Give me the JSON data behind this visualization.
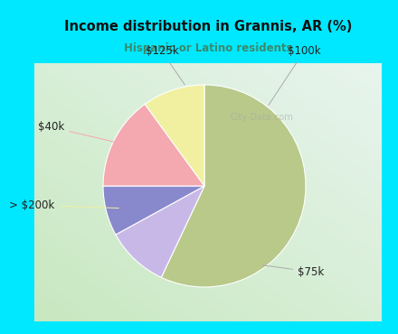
{
  "title": "Income distribution in Grannis, AR (%)",
  "subtitle": "Hispanic or Latino residents",
  "slices": [
    {
      "label": "$75k",
      "value": 57,
      "color": "#b8c98a"
    },
    {
      "label": "$100k",
      "value": 10,
      "color": "#c8b8e8"
    },
    {
      "label": "$125k",
      "value": 8,
      "color": "#8888cc"
    },
    {
      "label": "$40k",
      "value": 15,
      "color": "#f4a8b0"
    },
    {
      "label": "> $200k",
      "value": 10,
      "color": "#f0f0a0"
    }
  ],
  "background_color": "#00e8ff",
  "chart_bg_left": "#c8e8c0",
  "chart_bg_right": "#e8f4f0",
  "title_color": "#111111",
  "subtitle_color": "#3a8a6a",
  "watermark": "City-Data.com",
  "startangle": 90,
  "label_font_size": 8.5
}
